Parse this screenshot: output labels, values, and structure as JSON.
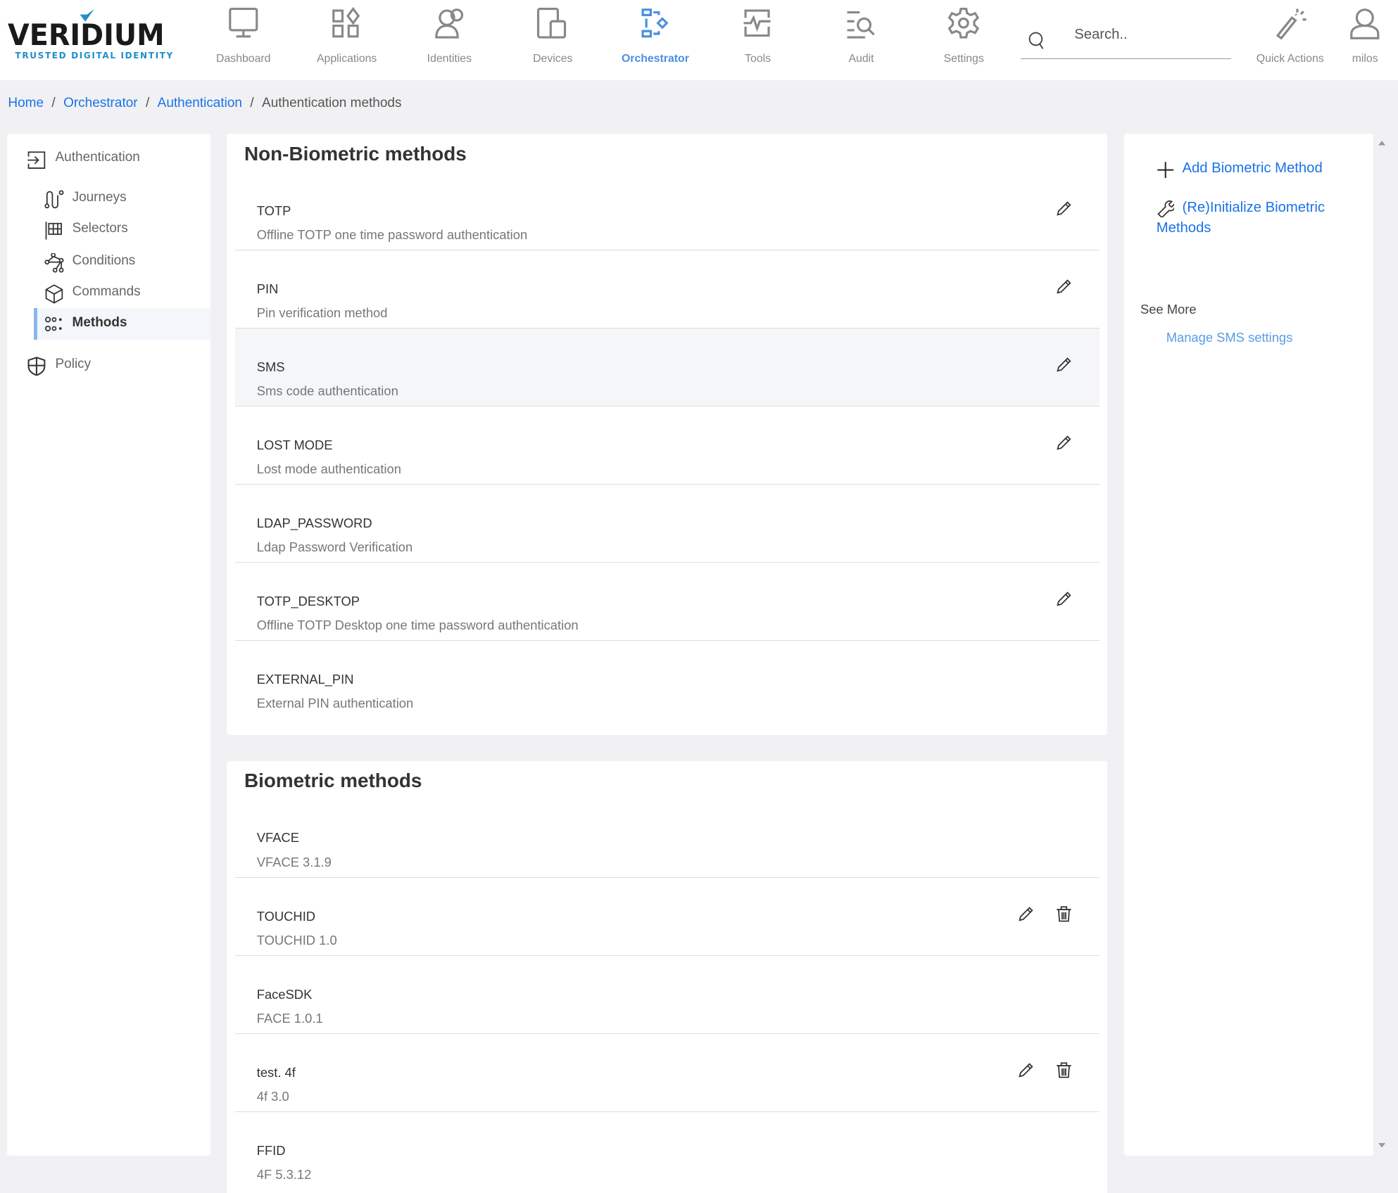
{
  "brand": {
    "name": "VERIDIUM",
    "tagline": "TRUSTED DIGITAL IDENTITY",
    "accent": "#1f8fc9"
  },
  "nav": [
    {
      "label": "Dashboard",
      "icon": "monitor-icon"
    },
    {
      "label": "Applications",
      "icon": "apps-icon"
    },
    {
      "label": "Identities",
      "icon": "users-icon"
    },
    {
      "label": "Devices",
      "icon": "devices-icon"
    },
    {
      "label": "Orchestrator",
      "icon": "orchestrator-icon",
      "active": true
    },
    {
      "label": "Tools",
      "icon": "tools-icon"
    },
    {
      "label": "Audit",
      "icon": "audit-icon"
    },
    {
      "label": "Settings",
      "icon": "gear-icon"
    }
  ],
  "search": {
    "placeholder": "Search.."
  },
  "quick_actions": "Quick Actions",
  "user": "milos",
  "breadcrumb": [
    "Home",
    "Orchestrator",
    "Authentication",
    "Authentication methods"
  ],
  "sidebar": {
    "section": "Authentication",
    "items": [
      {
        "label": "Journeys"
      },
      {
        "label": "Selectors"
      },
      {
        "label": "Conditions"
      },
      {
        "label": "Commands"
      },
      {
        "label": "Methods",
        "active": true
      }
    ],
    "policy": "Policy"
  },
  "non_biometric": {
    "title": "Non-Biometric methods",
    "rows": [
      {
        "name": "TOTP",
        "desc": "Offline TOTP one time password authentication",
        "edit": true
      },
      {
        "name": "PIN",
        "desc": "Pin verification method",
        "edit": true
      },
      {
        "name": "SMS",
        "desc": "Sms code authentication",
        "edit": true
      },
      {
        "name": "LOST MODE",
        "desc": "Lost mode authentication",
        "edit": true
      },
      {
        "name": "LDAP_PASSWORD",
        "desc": "Ldap Password Verification",
        "edit": false
      },
      {
        "name": "TOTP_DESKTOP",
        "desc": "Offline TOTP Desktop one time password authentication",
        "edit": true
      },
      {
        "name": "EXTERNAL_PIN",
        "desc": "External PIN authentication",
        "edit": false
      }
    ]
  },
  "biometric": {
    "title": "Biometric methods",
    "rows": [
      {
        "name": "VFACE",
        "desc": "VFACE 3.1.9",
        "edit": false,
        "delete": false
      },
      {
        "name": "TOUCHID",
        "desc": "TOUCHID 1.0",
        "edit": true,
        "delete": true
      },
      {
        "name": "FaceSDK",
        "desc": "FACE 1.0.1",
        "edit": false,
        "delete": false
      },
      {
        "name": "test. 4f",
        "desc": "4f 3.0",
        "edit": true,
        "delete": true
      },
      {
        "name": "FFID",
        "desc": "4F 5.3.12",
        "edit": false,
        "delete": false
      }
    ]
  },
  "actions": {
    "add": "Add Biometric Method",
    "reinit": "(Re)Initialize Biometric Methods",
    "see_more": "See More",
    "manage_sms": "Manage SMS settings"
  }
}
